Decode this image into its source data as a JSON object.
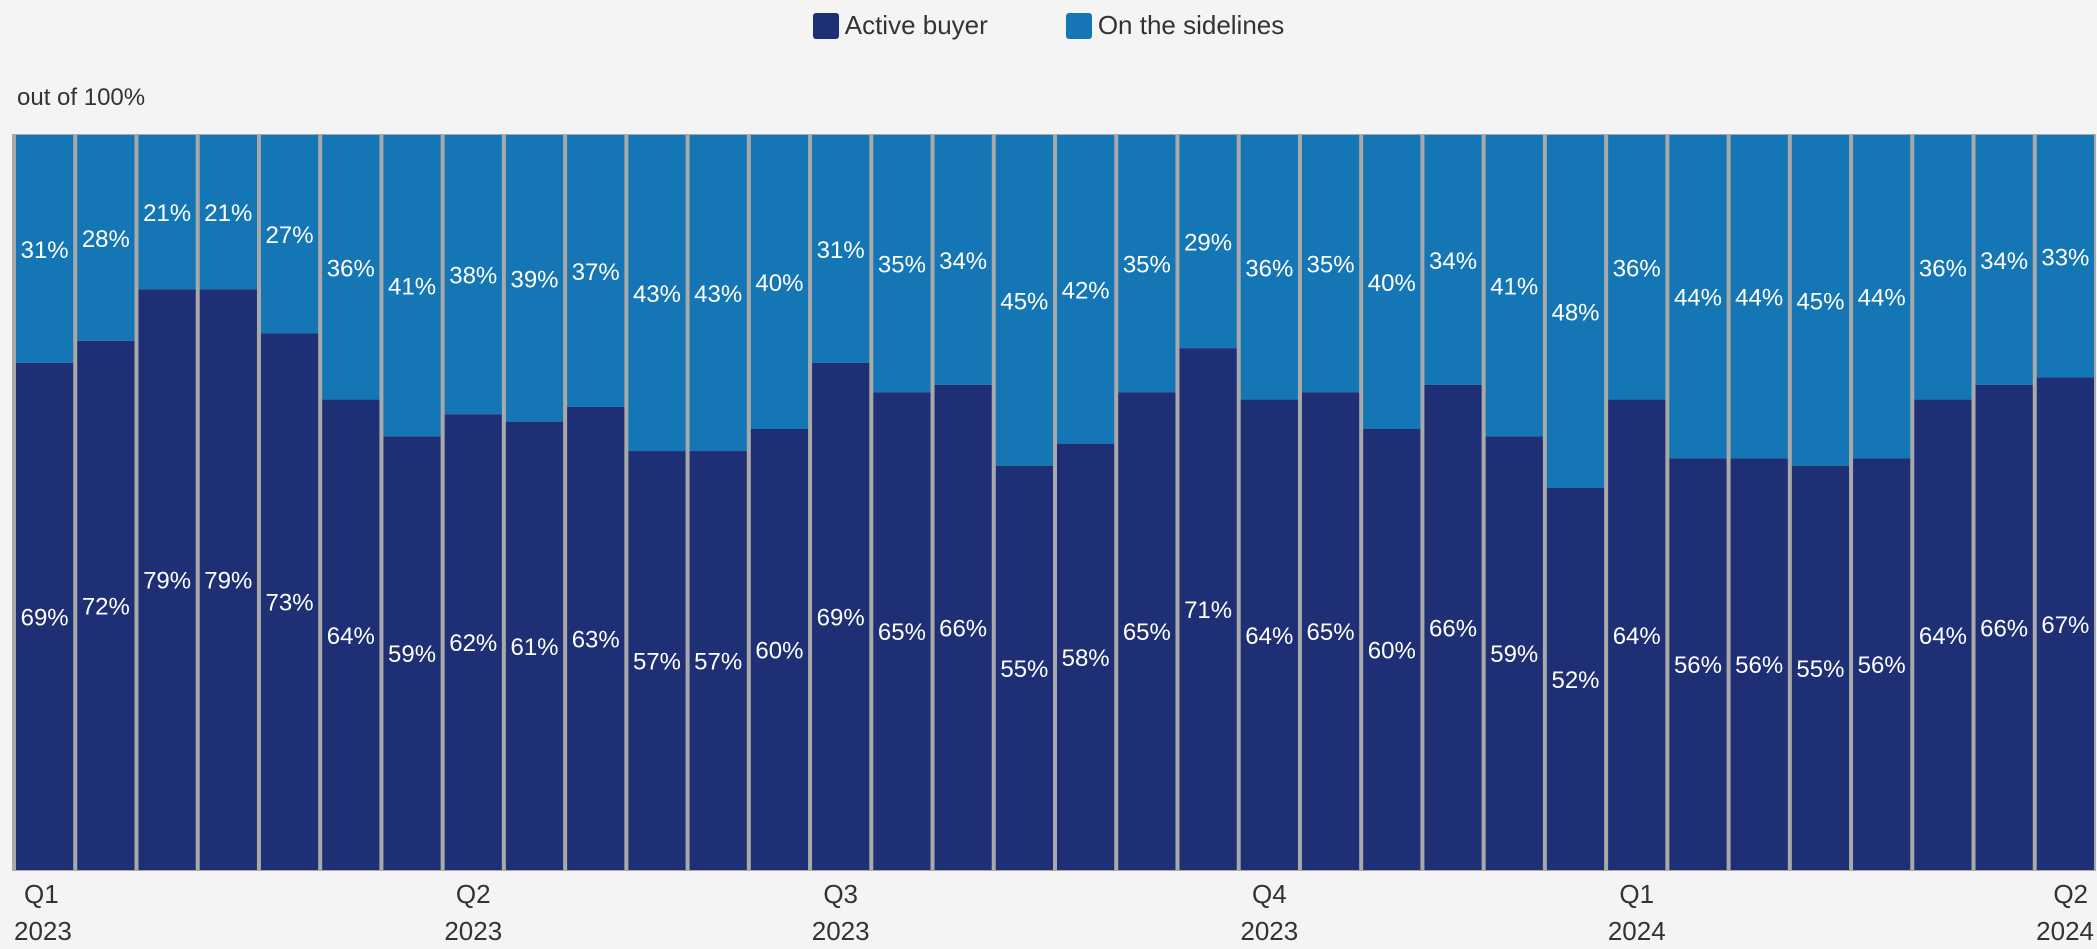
{
  "legend": [
    {
      "label": "Active buyer",
      "color": "#1f2f76"
    },
    {
      "label": "On the sidelines",
      "color": "#1476b4"
    }
  ],
  "chart_data": {
    "type": "bar",
    "stacked": true,
    "unit_label": "out of 100%",
    "ylim": [
      0,
      100
    ],
    "series": [
      {
        "name": "Active buyer",
        "color": "#1f2f76",
        "values": [
          69,
          72,
          79,
          79,
          73,
          64,
          59,
          62,
          61,
          63,
          57,
          57,
          60,
          69,
          65,
          66,
          55,
          58,
          65,
          71,
          64,
          65,
          60,
          66,
          59,
          52,
          64,
          56,
          56,
          55,
          56,
          64,
          66,
          67
        ]
      },
      {
        "name": "On the sidelines",
        "color": "#1476b4",
        "values": [
          31,
          28,
          21,
          21,
          27,
          36,
          41,
          38,
          39,
          37,
          43,
          43,
          40,
          31,
          35,
          34,
          45,
          42,
          35,
          29,
          36,
          35,
          40,
          34,
          41,
          48,
          36,
          44,
          44,
          45,
          44,
          36,
          34,
          33
        ]
      }
    ],
    "x_ticks": [
      {
        "index": 0,
        "quarter": "Q1",
        "year": "2023"
      },
      {
        "index": 7,
        "quarter": "Q2",
        "year": "2023"
      },
      {
        "index": 13,
        "quarter": "Q3",
        "year": "2023"
      },
      {
        "index": 20,
        "quarter": "Q4",
        "year": "2023"
      },
      {
        "index": 26,
        "quarter": "Q1",
        "year": "2024"
      },
      {
        "index": 33,
        "quarter": "Q2",
        "year": "2024"
      }
    ]
  }
}
